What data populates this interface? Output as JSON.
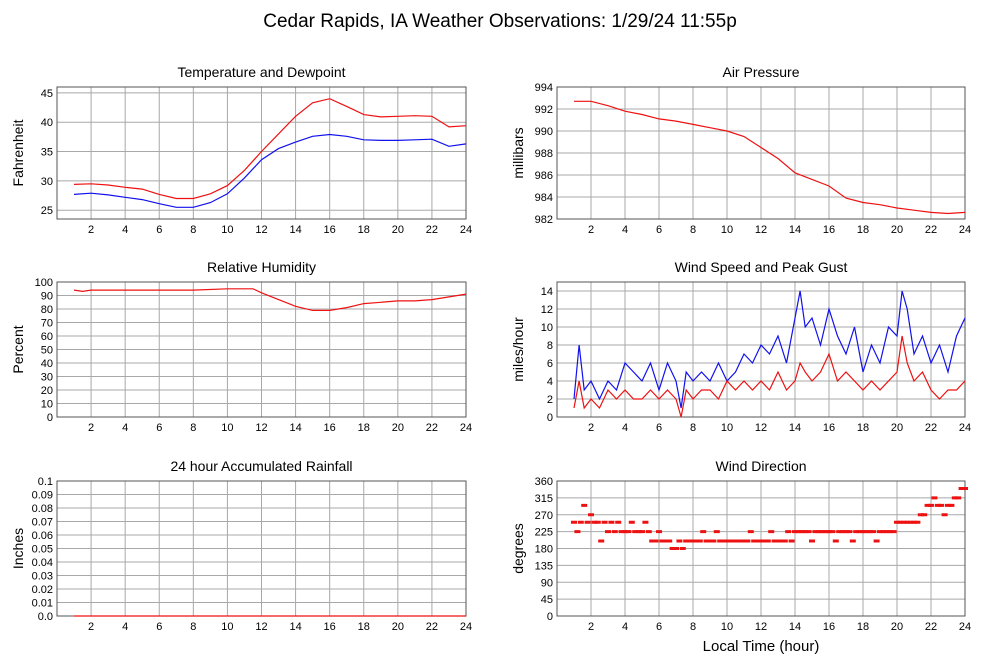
{
  "page": {
    "title": "Cedar Rapids, IA Weather Observations: 1/29/24 11:55p"
  },
  "xlabel": "Local Time (hour)",
  "colors": {
    "red": "#ee1111",
    "blue": "#1111ee",
    "grid": "#a8a8a8",
    "frame": "#555555"
  },
  "chart_data": [
    {
      "id": "temp",
      "type": "line",
      "title": "Temperature and Dewpoint",
      "ylabel": "Fahrenheit",
      "xlim": [
        0,
        24
      ],
      "xticks": [
        2,
        4,
        6,
        8,
        10,
        12,
        14,
        16,
        18,
        20,
        22,
        24
      ],
      "ylim": [
        23.5,
        46
      ],
      "yticks": [
        25,
        30,
        35,
        40,
        45
      ],
      "grid": true,
      "series": [
        {
          "color": "red",
          "x": [
            1,
            2,
            3,
            4,
            5,
            6,
            7,
            8,
            9,
            10,
            11,
            12,
            13,
            14,
            15,
            16,
            17,
            18,
            19,
            20,
            21,
            22,
            23,
            24
          ],
          "y": [
            29.4,
            29.5,
            29.3,
            28.9,
            28.6,
            27.7,
            27.0,
            27.0,
            27.8,
            29.2,
            31.8,
            35.0,
            38.0,
            41.0,
            43.3,
            44.0,
            42.7,
            41.3,
            40.9,
            41.0,
            41.1,
            41.0,
            39.2,
            39.4
          ]
        },
        {
          "color": "blue",
          "x": [
            1,
            2,
            3,
            4,
            5,
            6,
            7,
            8,
            9,
            10,
            11,
            12,
            13,
            14,
            15,
            16,
            17,
            18,
            19,
            20,
            21,
            22,
            23,
            24
          ],
          "y": [
            27.7,
            27.9,
            27.6,
            27.2,
            26.8,
            26.1,
            25.5,
            25.5,
            26.3,
            27.8,
            30.5,
            33.6,
            35.5,
            36.6,
            37.6,
            37.9,
            37.6,
            37.0,
            36.9,
            36.9,
            37.0,
            37.1,
            35.9,
            36.3
          ]
        }
      ]
    },
    {
      "id": "press",
      "type": "line",
      "title": "Air Pressure",
      "ylabel": "millibars",
      "xlim": [
        0,
        24
      ],
      "xticks": [
        2,
        4,
        6,
        8,
        10,
        12,
        14,
        16,
        18,
        20,
        22,
        24
      ],
      "ylim": [
        982,
        994
      ],
      "yticks": [
        982,
        984,
        986,
        988,
        990,
        992,
        994
      ],
      "grid": true,
      "series": [
        {
          "color": "red",
          "x": [
            1,
            2,
            3,
            4,
            5,
            6,
            7,
            8,
            9,
            10,
            11,
            12,
            13,
            14,
            15,
            16,
            17,
            18,
            19,
            20,
            21,
            22,
            23,
            24
          ],
          "y": [
            992.7,
            992.7,
            992.3,
            991.8,
            991.5,
            991.1,
            990.9,
            990.6,
            990.3,
            990.0,
            989.5,
            988.5,
            987.5,
            986.2,
            985.6,
            985.0,
            983.9,
            983.5,
            983.3,
            983.0,
            982.8,
            982.6,
            982.5,
            982.6
          ]
        }
      ]
    },
    {
      "id": "rh",
      "type": "line",
      "title": "Relative Humidity",
      "ylabel": "Percent",
      "xlim": [
        0,
        24
      ],
      "xticks": [
        2,
        4,
        6,
        8,
        10,
        12,
        14,
        16,
        18,
        20,
        22,
        24
      ],
      "ylim": [
        0,
        100
      ],
      "yticks": [
        0,
        10,
        20,
        30,
        40,
        50,
        60,
        70,
        80,
        90,
        100
      ],
      "grid": true,
      "series": [
        {
          "color": "red",
          "x": [
            1,
            1.5,
            2,
            4,
            6,
            8,
            10,
            11.5,
            12,
            13,
            14,
            15,
            16,
            17,
            18,
            19,
            20,
            21,
            22,
            23,
            24
          ],
          "y": [
            94,
            93,
            94,
            94,
            94,
            94,
            95,
            95,
            92,
            87,
            82,
            79,
            79,
            81,
            84,
            85,
            86,
            86,
            87,
            89,
            91
          ]
        }
      ]
    },
    {
      "id": "wind",
      "type": "line",
      "title": "Wind Speed and Peak Gust",
      "ylabel": "miles/hour",
      "xlim": [
        0,
        24
      ],
      "xticks": [
        2,
        4,
        6,
        8,
        10,
        12,
        14,
        16,
        18,
        20,
        22,
        24
      ],
      "ylim": [
        0,
        15
      ],
      "yticks": [
        0,
        2,
        4,
        6,
        8,
        10,
        12,
        14
      ],
      "grid": true,
      "series": [
        {
          "color": "blue",
          "x": [
            1,
            1.3,
            1.6,
            2,
            2.5,
            3,
            3.5,
            4,
            4.5,
            5,
            5.5,
            6,
            6.5,
            7,
            7.3,
            7.6,
            8,
            8.5,
            9,
            9.5,
            10,
            10.5,
            11,
            11.5,
            12,
            12.5,
            13,
            13.5,
            14,
            14.3,
            14.6,
            15,
            15.5,
            16,
            16.5,
            17,
            17.5,
            18,
            18.5,
            19,
            19.5,
            20,
            20.3,
            20.6,
            21,
            21.5,
            22,
            22.5,
            23,
            23.5,
            24
          ],
          "y": [
            2,
            8,
            3,
            4,
            2,
            4,
            3,
            6,
            5,
            4,
            6,
            3,
            6,
            4,
            1,
            5,
            4,
            5,
            4,
            6,
            4,
            5,
            7,
            6,
            8,
            7,
            9,
            6,
            11,
            14,
            10,
            11,
            8,
            12,
            9,
            7,
            10,
            5,
            8,
            6,
            10,
            9,
            14,
            12,
            7,
            9,
            6,
            8,
            5,
            9,
            11
          ]
        },
        {
          "color": "red",
          "x": [
            1,
            1.3,
            1.6,
            2,
            2.5,
            3,
            3.5,
            4,
            4.5,
            5,
            5.5,
            6,
            6.5,
            7,
            7.3,
            7.6,
            8,
            8.5,
            9,
            9.5,
            10,
            10.5,
            11,
            11.5,
            12,
            12.5,
            13,
            13.5,
            14,
            14.3,
            14.6,
            15,
            15.5,
            16,
            16.5,
            17,
            17.5,
            18,
            18.5,
            19,
            19.5,
            20,
            20.3,
            20.6,
            21,
            21.5,
            22,
            22.5,
            23,
            23.5,
            24
          ],
          "y": [
            1,
            4,
            1,
            2,
            1,
            3,
            2,
            3,
            2,
            2,
            3,
            2,
            3,
            2,
            0,
            3,
            2,
            3,
            3,
            2,
            4,
            3,
            4,
            3,
            4,
            3,
            5,
            3,
            4,
            6,
            5,
            4,
            5,
            7,
            4,
            5,
            4,
            3,
            4,
            3,
            4,
            5,
            9,
            6,
            4,
            5,
            3,
            2,
            3,
            3,
            4
          ]
        }
      ]
    },
    {
      "id": "rain",
      "type": "line",
      "title": "24 hour Accumulated Rainfall",
      "ylabel": "Inches",
      "xlim": [
        0,
        24
      ],
      "xticks": [
        2,
        4,
        6,
        8,
        10,
        12,
        14,
        16,
        18,
        20,
        22,
        24
      ],
      "ylim": [
        0,
        0.1
      ],
      "yticks": [
        0.0,
        0.01,
        0.02,
        0.03,
        0.04,
        0.05,
        0.06,
        0.07,
        0.08,
        0.09,
        0.1
      ],
      "ytick_labels": [
        "0.0",
        "0.01",
        "0.02",
        "0.03",
        "0.04",
        "0.05",
        "0.06",
        "0.07",
        "0.08",
        "0.09",
        "0.1"
      ],
      "grid": true,
      "series": [
        {
          "color": "red",
          "x": [
            1,
            24
          ],
          "y": [
            0,
            0
          ]
        }
      ]
    },
    {
      "id": "wdir",
      "type": "scatter",
      "title": "Wind Direction",
      "ylabel": "degrees",
      "xlim": [
        0,
        24
      ],
      "xticks": [
        2,
        4,
        6,
        8,
        10,
        12,
        14,
        16,
        18,
        20,
        22,
        24
      ],
      "ylim": [
        0,
        360
      ],
      "yticks": [
        0,
        45,
        90,
        135,
        180,
        225,
        270,
        315,
        360
      ],
      "grid": true,
      "series": [
        {
          "color": "red",
          "x": [
            1.0,
            1.2,
            1.4,
            1.6,
            1.8,
            2.0,
            2.2,
            2.4,
            2.6,
            2.8,
            3.0,
            3.2,
            3.4,
            3.6,
            3.8,
            4.0,
            4.2,
            4.4,
            4.6,
            4.8,
            5.0,
            5.2,
            5.4,
            5.6,
            5.8,
            6.0,
            6.2,
            6.4,
            6.6,
            6.8,
            7.0,
            7.2,
            7.4,
            7.6,
            7.8,
            8.0,
            8.2,
            8.4,
            8.6,
            8.8,
            9.0,
            9.2,
            9.4,
            9.6,
            9.8,
            10.0,
            10.2,
            10.4,
            10.6,
            10.8,
            11.0,
            11.2,
            11.4,
            11.6,
            11.8,
            12.0,
            12.2,
            12.4,
            12.6,
            12.8,
            13.0,
            13.2,
            13.4,
            13.6,
            13.8,
            14.0,
            14.2,
            14.4,
            14.6,
            14.8,
            15.0,
            15.2,
            15.4,
            15.6,
            15.8,
            16.0,
            16.2,
            16.4,
            16.6,
            16.8,
            17.0,
            17.2,
            17.4,
            17.6,
            17.8,
            18.0,
            18.2,
            18.4,
            18.6,
            18.8,
            19.0,
            19.2,
            19.4,
            19.6,
            19.8,
            20.0,
            20.2,
            20.4,
            20.6,
            20.8,
            21.0,
            21.2,
            21.4,
            21.6,
            21.8,
            22.0,
            22.2,
            22.4,
            22.6,
            22.8,
            23.0,
            23.2,
            23.4,
            23.6,
            23.8,
            24.0
          ],
          "y": [
            250,
            225,
            250,
            295,
            250,
            270,
            250,
            250,
            200,
            250,
            225,
            250,
            225,
            250,
            225,
            225,
            225,
            250,
            225,
            225,
            225,
            250,
            225,
            200,
            200,
            225,
            200,
            200,
            200,
            180,
            180,
            200,
            180,
            200,
            200,
            200,
            200,
            200,
            225,
            200,
            200,
            200,
            225,
            200,
            200,
            200,
            200,
            200,
            200,
            200,
            200,
            200,
            225,
            200,
            200,
            200,
            200,
            200,
            225,
            200,
            200,
            200,
            200,
            225,
            200,
            225,
            225,
            225,
            225,
            225,
            200,
            225,
            225,
            225,
            225,
            225,
            225,
            200,
            225,
            225,
            225,
            225,
            200,
            225,
            225,
            225,
            225,
            225,
            225,
            200,
            225,
            225,
            225,
            225,
            225,
            250,
            250,
            250,
            250,
            250,
            250,
            250,
            270,
            270,
            295,
            295,
            315,
            295,
            295,
            270,
            295,
            295,
            315,
            315,
            340,
            340
          ]
        }
      ]
    }
  ]
}
